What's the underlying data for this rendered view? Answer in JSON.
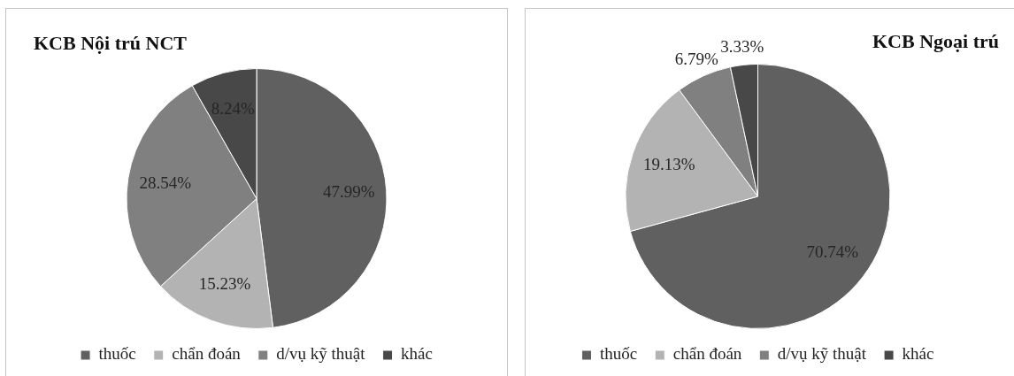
{
  "chart_data": [
    {
      "type": "pie",
      "title": "KCB Nội trú NCT",
      "categories": [
        "thuốc",
        "chẩn đoán",
        "d/vụ kỹ thuật",
        "khác"
      ],
      "values": [
        47.99,
        15.23,
        28.54,
        8.24
      ],
      "colors": [
        "#606060",
        "#b3b3b3",
        "#808080",
        "#484848"
      ],
      "value_labels": [
        "47.99%",
        "15.23%",
        "28.54%",
        "8.24%"
      ],
      "legend": "bottom"
    },
    {
      "type": "pie",
      "title": "KCB Ngoại trú",
      "categories": [
        "thuốc",
        "chẩn đoán",
        "d/vụ kỹ thuật",
        "khác"
      ],
      "values": [
        70.74,
        19.13,
        6.79,
        3.33
      ],
      "colors": [
        "#606060",
        "#b3b3b3",
        "#808080",
        "#484848"
      ],
      "value_labels": [
        "70.74%",
        "19.13%",
        "6.79%",
        "3.33%"
      ],
      "legend": "bottom"
    }
  ]
}
